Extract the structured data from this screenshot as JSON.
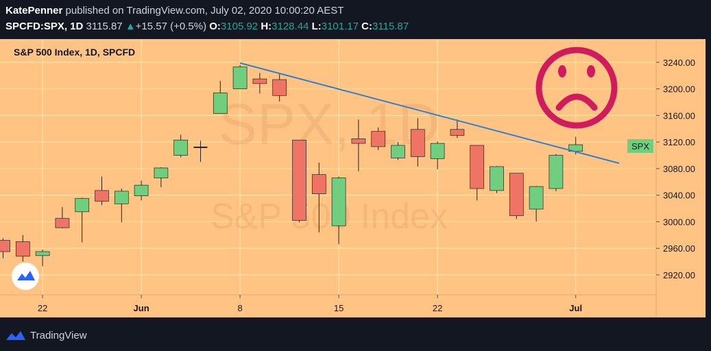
{
  "header": {
    "author": "KatePenner",
    "published_text": "published on TradingView.com, July 02, 2020 10:00:20 AEST",
    "symbol": "SPCFD:SPX, 1D",
    "last": "3115.87",
    "change_arrow": "▲",
    "change": "+15.57 (+0.5%)",
    "o_label": "O:",
    "o_value": "3105.92",
    "h_label": "H:",
    "h_value": "3128.44",
    "l_label": "L:",
    "l_value": "3101.17",
    "c_label": "C:",
    "c_value": "3115.87"
  },
  "chart_title": "S&P 500 Index, 1D, SPCFD",
  "watermark": {
    "line1": "SPX, 1D",
    "line2": "S&P 500 Index"
  },
  "price_tag": "SPX",
  "footer": {
    "brand": "TradingView"
  },
  "colors": {
    "background": "#ffc483",
    "grid": "#ffe9a8",
    "up": "#6fcf7f",
    "down": "#ef7466",
    "trendline": "#2d7fd1",
    "sad_face": "#d01b5c",
    "page": "#131722"
  },
  "chart_data": {
    "type": "candlestick",
    "title": "S&P 500 Index, 1D, SPCFD",
    "ylim": [
      2890,
      3275
    ],
    "y_ticks": [
      "3240.00",
      "3200.00",
      "3160.00",
      "3120.00",
      "3080.00",
      "3040.00",
      "3000.00",
      "2960.00",
      "2920.00"
    ],
    "x_ticks": [
      "22",
      "Jun",
      "8",
      "15",
      "22",
      "Jul"
    ],
    "grid": true,
    "candles": [
      {
        "o": 2972,
        "h": 2975,
        "l": 2945,
        "c": 2955
      },
      {
        "o": 2970,
        "h": 2980,
        "l": 2940,
        "c": 2948
      },
      {
        "o": 2949,
        "h": 2958,
        "l": 2933,
        "c": 2955
      },
      {
        "o": 3005,
        "h": 3022,
        "l": 2990,
        "c": 2991
      },
      {
        "o": 3015,
        "h": 3036,
        "l": 2969,
        "c": 3035
      },
      {
        "o": 3047,
        "h": 3068,
        "l": 3025,
        "c": 3031
      },
      {
        "o": 3027,
        "h": 3050,
        "l": 2999,
        "c": 3046
      },
      {
        "o": 3039,
        "h": 3062,
        "l": 3032,
        "c": 3055
      },
      {
        "o": 3066,
        "h": 3082,
        "l": 3052,
        "c": 3081
      },
      {
        "o": 3100,
        "h": 3131,
        "l": 3097,
        "c": 3123
      },
      {
        "o": 3112,
        "h": 3122,
        "l": 3090,
        "c": 3112
      },
      {
        "o": 3163,
        "h": 3212,
        "l": 3163,
        "c": 3194
      },
      {
        "o": 3200,
        "h": 3236,
        "l": 3200,
        "c": 3233
      },
      {
        "o": 3215,
        "h": 3224,
        "l": 3193,
        "c": 3208
      },
      {
        "o": 3214,
        "h": 3223,
        "l": 3181,
        "c": 3190
      },
      {
        "o": 3123,
        "h": 3123,
        "l": 2999,
        "c": 3002
      },
      {
        "o": 3071,
        "h": 3089,
        "l": 2984,
        "c": 3042
      },
      {
        "o": 2994,
        "h": 3068,
        "l": 2966,
        "c": 3066
      },
      {
        "o": 3125,
        "h": 3154,
        "l": 3076,
        "c": 3118
      },
      {
        "o": 3136,
        "h": 3142,
        "l": 3108,
        "c": 3113
      },
      {
        "o": 3096,
        "h": 3120,
        "l": 3093,
        "c": 3115
      },
      {
        "o": 3139,
        "h": 3156,
        "l": 3083,
        "c": 3098
      },
      {
        "o": 3095,
        "h": 3121,
        "l": 3079,
        "c": 3118
      },
      {
        "o": 3139,
        "h": 3154,
        "l": 3126,
        "c": 3130
      },
      {
        "o": 3115,
        "h": 3115,
        "l": 3032,
        "c": 3050
      },
      {
        "o": 3047,
        "h": 3084,
        "l": 3043,
        "c": 3083
      },
      {
        "o": 3073,
        "h": 3073,
        "l": 3004,
        "c": 3009
      },
      {
        "o": 3019,
        "h": 3054,
        "l": 3000,
        "c": 3053
      },
      {
        "o": 3050,
        "h": 3102,
        "l": 3046,
        "c": 3100
      },
      {
        "o": 3106,
        "h": 3128,
        "l": 3101,
        "c": 3116
      }
    ],
    "trendline": {
      "start_index": 12,
      "start_value": 3239,
      "end_index": 31.2,
      "end_value": 3088
    }
  }
}
